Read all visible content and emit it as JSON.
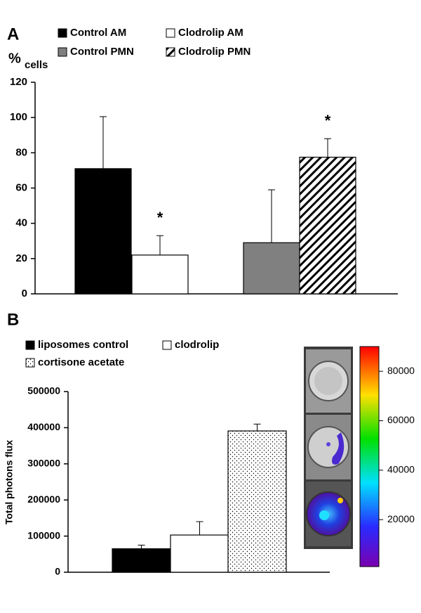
{
  "chart_data": [
    {
      "type": "bar",
      "panel_label": "A",
      "ylabel": "%",
      "ylabel_sub": "cells",
      "ylim": [
        0,
        120
      ],
      "yticks": [
        0,
        20,
        40,
        60,
        80,
        100,
        120
      ],
      "series": [
        {
          "name": "Control AM",
          "color": "#000000",
          "values": [
            71
          ],
          "errors": [
            29.5
          ]
        },
        {
          "name": "Clodrolip AM",
          "color": "#ffffff",
          "values": [
            22
          ],
          "errors": [
            11
          ]
        },
        {
          "name": "Control PMN",
          "color": "#808080",
          "values": [
            29
          ],
          "errors": [
            30
          ]
        },
        {
          "name": "Clodrolip PMN",
          "color": "#ffffff",
          "pattern": "hatch",
          "values": [
            77.5
          ],
          "errors": [
            10.5
          ]
        }
      ],
      "annotations": [
        {
          "text": "*",
          "series": 1
        },
        {
          "text": "*",
          "series": 3
        }
      ]
    },
    {
      "type": "bar",
      "panel_label": "B",
      "ylabel": "Total photons flux",
      "ylim": [
        0,
        500000
      ],
      "yticks": [
        0,
        100000,
        200000,
        300000,
        400000,
        500000
      ],
      "series": [
        {
          "name": "liposomes control",
          "color": "#000000",
          "values": [
            65000
          ],
          "errors": [
            10000
          ]
        },
        {
          "name": "clodrolip",
          "color": "#ffffff",
          "values": [
            103000
          ],
          "errors": [
            37000
          ]
        },
        {
          "name": "cortisone acetate",
          "color": "#ffffff",
          "pattern": "dots",
          "values": [
            391000
          ],
          "errors": [
            19000
          ]
        }
      ],
      "colorbar": {
        "lim": [
          1000,
          90000
        ],
        "ticks": [
          20000,
          40000,
          60000,
          80000
        ]
      }
    }
  ]
}
